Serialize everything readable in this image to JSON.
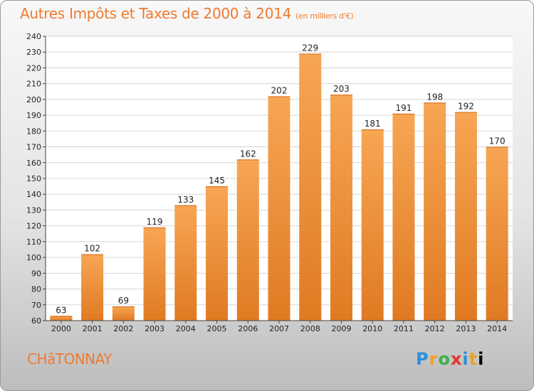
{
  "header": {
    "title": "Autres Impôts et Taxes de 2000 à 2014",
    "subtitle": "(en milliers d'€)"
  },
  "footer": {
    "commune": "CHâTONNAY",
    "logo_letters": [
      "P",
      "r",
      "o",
      "x",
      "i",
      "t",
      "i"
    ]
  },
  "colors": {
    "bar_top": "#f7a654",
    "bar_bottom": "#e07a22",
    "text_accent": "#ef7a2f",
    "grid": "#d6d6d6"
  },
  "chart_data": {
    "type": "bar",
    "title": "Autres Impôts et Taxes de 2000 à 2014",
    "subtitle": "(en milliers d'€)",
    "categories": [
      "2000",
      "2001",
      "2002",
      "2003",
      "2004",
      "2005",
      "2006",
      "2007",
      "2008",
      "2009",
      "2010",
      "2011",
      "2012",
      "2013",
      "2014"
    ],
    "values": [
      63,
      102,
      69,
      119,
      133,
      145,
      162,
      202,
      229,
      203,
      181,
      191,
      198,
      192,
      170
    ],
    "data_labels": [
      "63",
      "102",
      "69",
      "119",
      "133",
      "145",
      "162",
      "202",
      "229",
      "203",
      "181",
      "191",
      "198",
      "192",
      "170"
    ],
    "ylim": [
      60,
      240
    ],
    "yticks": [
      60,
      70,
      80,
      90,
      100,
      110,
      120,
      130,
      140,
      150,
      160,
      170,
      180,
      190,
      200,
      210,
      220,
      230,
      240
    ],
    "grid": true,
    "legend": "none"
  }
}
